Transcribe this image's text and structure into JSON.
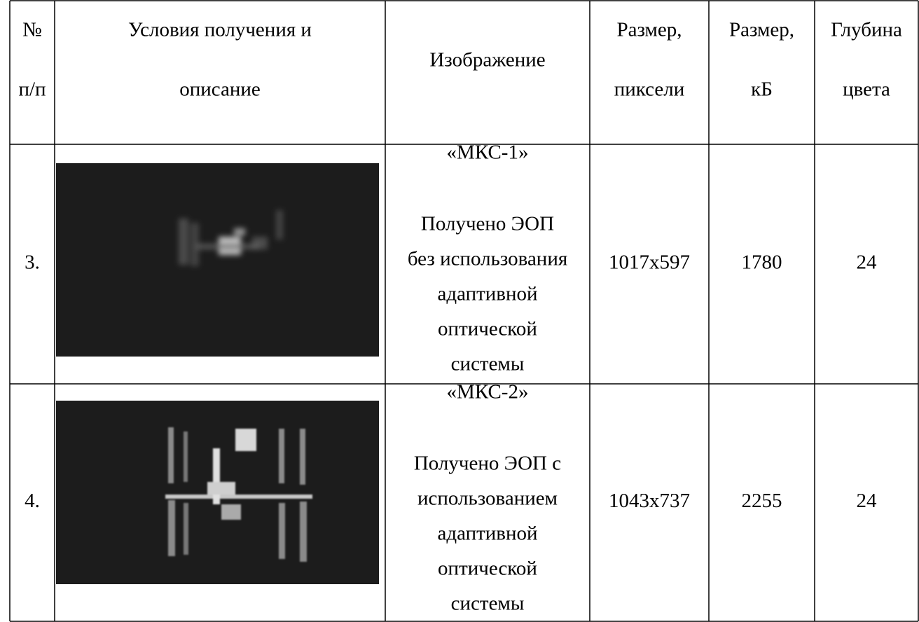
{
  "header": {
    "cells": [
      [
        "№",
        "п/п"
      ],
      [
        "Условия получения и",
        "описание"
      ],
      [
        "Изображение"
      ],
      [
        "Размер,",
        "пиксели"
      ],
      [
        "Размер,",
        "кБ"
      ],
      [
        "Глубина",
        "цвета"
      ]
    ]
  },
  "rows": [
    {
      "number": "3.",
      "title": "«МКС-1»",
      "description": [
        "Получено ЭОП",
        "без использования",
        "адаптивной",
        "оптической",
        "системы"
      ],
      "pixels": "1017x597",
      "size_kb": 1780,
      "color_depth": 24
    },
    {
      "number": "4.",
      "title": "«МКС-2»",
      "description": [
        "Получено ЭОП с",
        "использованием",
        "адаптивной",
        "оптической",
        "системы"
      ],
      "pixels": "1043x737",
      "size_kb": 2255,
      "color_depth": 24
    }
  ]
}
